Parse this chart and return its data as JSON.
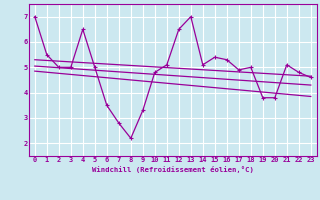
{
  "background_color": "#cce8f0",
  "grid_color": "#ffffff",
  "line_color": "#990099",
  "xlabel": "Windchill (Refroidissement éolien,°C)",
  "xlim": [
    -0.5,
    23.5
  ],
  "ylim": [
    1.5,
    7.5
  ],
  "yticks": [
    2,
    3,
    4,
    5,
    6,
    7
  ],
  "xticks": [
    0,
    1,
    2,
    3,
    4,
    5,
    6,
    7,
    8,
    9,
    10,
    11,
    12,
    13,
    14,
    15,
    16,
    17,
    18,
    19,
    20,
    21,
    22,
    23
  ],
  "series1_x": [
    0,
    1,
    2,
    3,
    4,
    5,
    6,
    7,
    8,
    9,
    10,
    11,
    12,
    13,
    14,
    15,
    16,
    17,
    18,
    19,
    20,
    21,
    22,
    23
  ],
  "series1_y": [
    7.0,
    5.5,
    5.0,
    5.0,
    6.5,
    5.0,
    3.5,
    2.8,
    2.2,
    3.3,
    4.8,
    5.1,
    6.5,
    7.0,
    5.1,
    5.4,
    5.3,
    4.9,
    5.0,
    3.8,
    3.8,
    5.1,
    4.8,
    4.6
  ],
  "series2_x": [
    0,
    23
  ],
  "series2_y": [
    5.3,
    4.65
  ],
  "series3_x": [
    0,
    23
  ],
  "series3_y": [
    5.05,
    4.3
  ],
  "series4_x": [
    0,
    23
  ],
  "series4_y": [
    4.85,
    3.85
  ]
}
